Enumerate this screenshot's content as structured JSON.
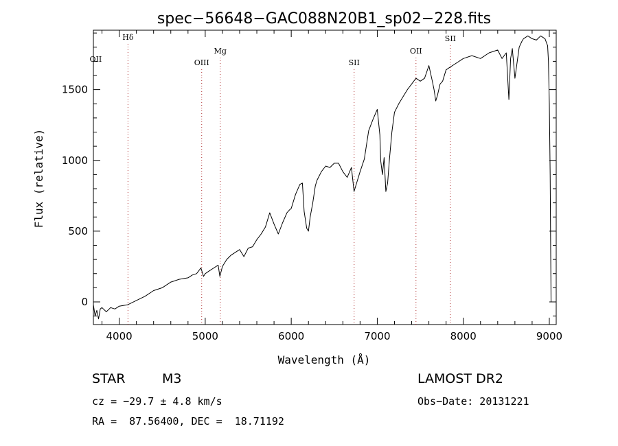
{
  "chart_data": {
    "type": "line",
    "title": "spec−56648−GAC088N20B1_sp02−228.fits",
    "xlabel": "Wavelength (Å)",
    "ylabel": "Flux (relative)",
    "xlim": [
      3700,
      9080
    ],
    "ylim": [
      -160,
      1920
    ],
    "xticks": [
      4000,
      5000,
      6000,
      7000,
      8000,
      9000
    ],
    "yticks": [
      0,
      500,
      1000,
      1500
    ],
    "grid": false,
    "series": [
      {
        "x": [
          3700,
          3720,
          3740,
          3760,
          3780,
          3800,
          3850,
          3900,
          3950,
          4000,
          4100,
          4200,
          4300,
          4400,
          4500,
          4600,
          4700,
          4800,
          4850,
          4900,
          4950,
          4980,
          5000,
          5050,
          5100,
          5150,
          5170,
          5200,
          5250,
          5300,
          5400,
          5450,
          5500,
          5550,
          5600,
          5650,
          5700,
          5750,
          5800,
          5850,
          5900,
          5950,
          5980,
          6000,
          6050,
          6100,
          6130,
          6150,
          6180,
          6200,
          6220,
          6250,
          6280,
          6300,
          6350,
          6400,
          6450,
          6500,
          6550,
          6600,
          6650,
          6700,
          6730,
          6750,
          6800,
          6850,
          6900,
          6950,
          7000,
          7030,
          7040,
          7060,
          7080,
          7100,
          7120,
          7140,
          7170,
          7200,
          7250,
          7300,
          7350,
          7400,
          7450,
          7500,
          7550,
          7600,
          7640,
          7660,
          7680,
          7700,
          7730,
          7760,
          7800,
          7850,
          7900,
          8000,
          8100,
          8200,
          8300,
          8400,
          8450,
          8500,
          8530,
          8550,
          8570,
          8600,
          8650,
          8680,
          8700,
          8750,
          8800,
          8850,
          8900,
          8950,
          8980,
          8990,
          9000,
          9010,
          9020
        ],
        "values": [
          -20,
          -100,
          -60,
          -120,
          -50,
          -40,
          -70,
          -40,
          -50,
          -30,
          -20,
          10,
          40,
          80,
          100,
          140,
          160,
          170,
          190,
          200,
          240,
          180,
          200,
          220,
          240,
          260,
          180,
          250,
          300,
          330,
          370,
          320,
          380,
          390,
          440,
          480,
          530,
          630,
          550,
          480,
          560,
          630,
          650,
          660,
          760,
          830,
          840,
          640,
          520,
          500,
          600,
          700,
          820,
          860,
          920,
          960,
          950,
          980,
          980,
          920,
          880,
          950,
          780,
          820,
          920,
          1010,
          1210,
          1290,
          1360,
          1180,
          1000,
          900,
          1020,
          780,
          840,
          1000,
          1200,
          1340,
          1400,
          1450,
          1500,
          1540,
          1580,
          1560,
          1580,
          1670,
          1560,
          1500,
          1420,
          1460,
          1540,
          1560,
          1640,
          1660,
          1680,
          1720,
          1740,
          1720,
          1760,
          1780,
          1720,
          1760,
          1430,
          1720,
          1790,
          1580,
          1800,
          1840,
          1860,
          1880,
          1860,
          1850,
          1880,
          1860,
          1810,
          1700,
          1400,
          900,
          0
        ]
      }
    ],
    "line_markers": [
      {
        "label": "OII",
        "x": 3727,
        "dotted": false
      },
      {
        "label": "Hδ",
        "x": 4102,
        "dotted": true
      },
      {
        "label": "OIII",
        "x": 4959,
        "dotted": true
      },
      {
        "label": "Mg",
        "x": 5175,
        "dotted": true
      },
      {
        "label": "SII",
        "x": 6731,
        "dotted": true
      },
      {
        "label": "OII",
        "x": 7450,
        "dotted": true
      },
      {
        "label": "SII",
        "x": 7850,
        "dotted": true
      }
    ]
  },
  "footer": {
    "object_type": "STAR",
    "subclass": "M3",
    "survey": "LAMOST DR2",
    "redshift": "cz = −29.7 ± 4.8 km/s",
    "obs_date": "Obs−Date: 20131221",
    "coords": "RA =  87.56400, DEC =  18.71192"
  }
}
